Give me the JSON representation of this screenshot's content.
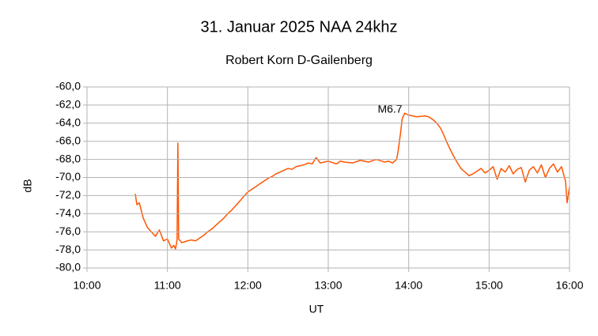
{
  "chart_data": {
    "type": "line",
    "title": "31. Januar 2025   NAA 24khz",
    "subtitle": "Robert  Korn   D-Gailenberg",
    "x_label": "UT",
    "y_label": "dB",
    "annotation": "M6.7",
    "grid": true,
    "xlim": [
      10,
      16
    ],
    "xticks": [
      {
        "value": 10,
        "label": "10:00"
      },
      {
        "value": 11,
        "label": "11:00"
      },
      {
        "value": 12,
        "label": "12:00"
      },
      {
        "value": 13,
        "label": "13:00"
      },
      {
        "value": 14,
        "label": "14:00"
      },
      {
        "value": 15,
        "label": "15:00"
      },
      {
        "value": 16,
        "label": "16:00"
      }
    ],
    "ylim": [
      -80,
      -60
    ],
    "yticks": [
      {
        "value": -80,
        "label": "-80,0"
      },
      {
        "value": -78,
        "label": "-78,0"
      },
      {
        "value": -76,
        "label": "-76,0"
      },
      {
        "value": -74,
        "label": "-74,0"
      },
      {
        "value": -72,
        "label": "-72,0"
      },
      {
        "value": -70,
        "label": "-70,0"
      },
      {
        "value": -68,
        "label": "-68,0"
      },
      {
        "value": -66,
        "label": "-66,0"
      },
      {
        "value": -64,
        "label": "-64,0"
      },
      {
        "value": -62,
        "label": "-62,0"
      },
      {
        "value": -60,
        "label": "-60,0"
      }
    ],
    "x": [
      10.6,
      10.62,
      10.65,
      10.7,
      10.75,
      10.8,
      10.85,
      10.9,
      10.95,
      11.0,
      11.05,
      11.08,
      11.1,
      11.12,
      11.13,
      11.14,
      11.18,
      11.25,
      11.3,
      11.35,
      11.4,
      11.45,
      11.5,
      11.55,
      11.6,
      11.65,
      11.7,
      11.75,
      11.8,
      11.85,
      11.9,
      11.95,
      12.0,
      12.05,
      12.1,
      12.15,
      12.2,
      12.25,
      12.3,
      12.35,
      12.4,
      12.45,
      12.5,
      12.55,
      12.6,
      12.65,
      12.7,
      12.75,
      12.8,
      12.85,
      12.9,
      12.95,
      13.0,
      13.1,
      13.15,
      13.2,
      13.3,
      13.4,
      13.5,
      13.6,
      13.7,
      13.75,
      13.8,
      13.85,
      13.87,
      13.9,
      13.92,
      13.95,
      14.0,
      14.1,
      14.2,
      14.25,
      14.3,
      14.35,
      14.4,
      14.45,
      14.5,
      14.55,
      14.6,
      14.65,
      14.7,
      14.75,
      14.8,
      14.85,
      14.9,
      14.95,
      15.0,
      15.05,
      15.1,
      15.15,
      15.2,
      15.25,
      15.3,
      15.35,
      15.4,
      15.45,
      15.5,
      15.55,
      15.6,
      15.65,
      15.7,
      15.75,
      15.8,
      15.85,
      15.9,
      15.95,
      15.97,
      16.0
    ],
    "series": [
      {
        "name": "NAA 24khz",
        "color": "#ff5500",
        "values": [
          -71.8,
          -73.0,
          -72.8,
          -74.5,
          -75.5,
          -76.0,
          -76.5,
          -75.8,
          -77.0,
          -76.8,
          -77.8,
          -77.5,
          -77.9,
          -76.9,
          -66.2,
          -76.8,
          -77.2,
          -77.0,
          -76.9,
          -77.0,
          -76.7,
          -76.4,
          -76.0,
          -75.7,
          -75.3,
          -74.9,
          -74.5,
          -74.0,
          -73.6,
          -73.1,
          -72.6,
          -72.1,
          -71.6,
          -71.3,
          -71.0,
          -70.7,
          -70.4,
          -70.1,
          -69.9,
          -69.6,
          -69.4,
          -69.2,
          -69.0,
          -69.1,
          -68.8,
          -68.7,
          -68.6,
          -68.4,
          -68.5,
          -67.8,
          -68.4,
          -68.3,
          -68.2,
          -68.5,
          -68.2,
          -68.3,
          -68.4,
          -68.1,
          -68.3,
          -68.0,
          -68.3,
          -68.2,
          -68.4,
          -68.0,
          -67.0,
          -65.0,
          -63.5,
          -62.9,
          -63.1,
          -63.3,
          -63.2,
          -63.3,
          -63.6,
          -64.0,
          -64.6,
          -65.6,
          -66.6,
          -67.5,
          -68.3,
          -69.0,
          -69.4,
          -69.8,
          -69.6,
          -69.3,
          -69.0,
          -69.5,
          -69.2,
          -68.8,
          -70.2,
          -69.0,
          -69.4,
          -68.7,
          -69.6,
          -69.1,
          -68.9,
          -70.5,
          -69.2,
          -68.8,
          -69.5,
          -68.6,
          -70.0,
          -69.0,
          -68.5,
          -69.4,
          -68.8,
          -70.4,
          -72.8,
          -71.0
        ]
      }
    ]
  }
}
